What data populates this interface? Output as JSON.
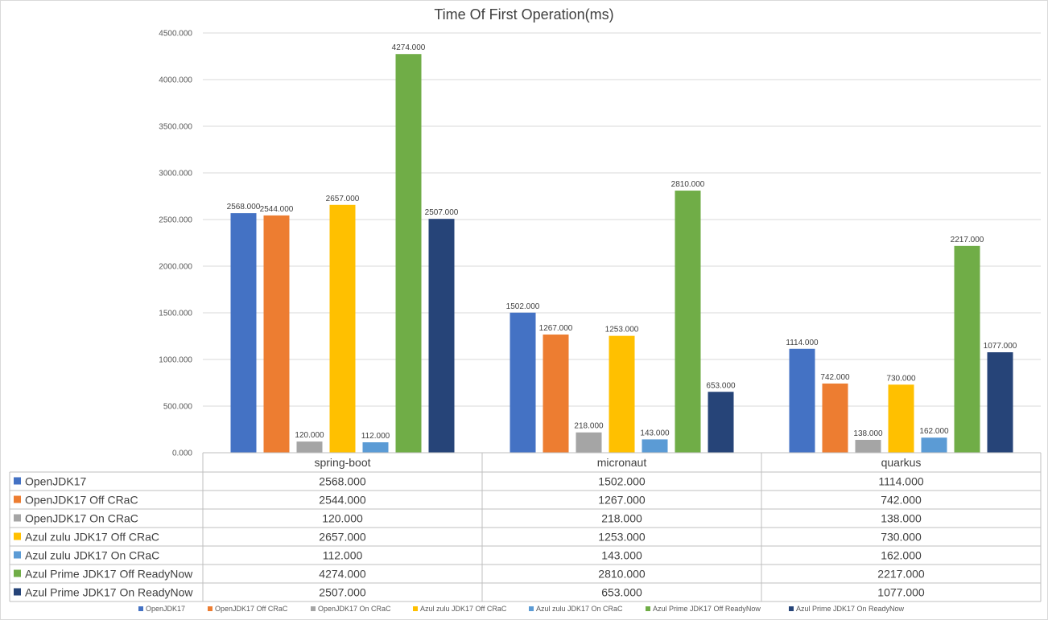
{
  "chart_data": {
    "type": "bar",
    "title": "Time Of First Operation(ms)",
    "categories": [
      "spring-boot",
      "micronaut",
      "quarkus"
    ],
    "ylim": [
      0,
      4500
    ],
    "ytick_step": 500,
    "ytick_labels": [
      "0.000",
      "500.000",
      "1000.000",
      "1500.000",
      "2000.000",
      "2500.000",
      "3000.000",
      "3500.000",
      "4000.000",
      "4500.000"
    ],
    "grid": true,
    "legend_position": "bottom",
    "has_data_table": true,
    "series": [
      {
        "name": "OpenJDK17",
        "color": "#4472c4",
        "values": [
          2568,
          1502,
          1114
        ],
        "labels": [
          "2568.000",
          "1502.000",
          "1114.000"
        ]
      },
      {
        "name": "OpenJDK17 Off CRaC",
        "color": "#ed7d31",
        "values": [
          2544,
          1267,
          742
        ],
        "labels": [
          "2544.000",
          "1267.000",
          "742.000"
        ]
      },
      {
        "name": "OpenJDK17 On CRaC",
        "color": "#a5a5a5",
        "values": [
          120,
          218,
          138
        ],
        "labels": [
          "120.000",
          "218.000",
          "138.000"
        ]
      },
      {
        "name": "Azul zulu JDK17 Off CRaC",
        "color": "#ffc000",
        "values": [
          2657,
          1253,
          730
        ],
        "labels": [
          "2657.000",
          "1253.000",
          "730.000"
        ]
      },
      {
        "name": "Azul zulu JDK17 On CRaC",
        "color": "#5b9bd5",
        "values": [
          112,
          143,
          162
        ],
        "labels": [
          "112.000",
          "143.000",
          "162.000"
        ]
      },
      {
        "name": "Azul Prime JDK17 Off ReadyNow",
        "color": "#70ad47",
        "values": [
          4274,
          2810,
          2217
        ],
        "labels": [
          "4274.000",
          "2810.000",
          "2217.000"
        ]
      },
      {
        "name": "Azul Prime JDK17 On ReadyNow",
        "color": "#264478",
        "values": [
          2507,
          653,
          1077
        ],
        "labels": [
          "2507.000",
          "653.000",
          "1077.000"
        ]
      }
    ]
  }
}
